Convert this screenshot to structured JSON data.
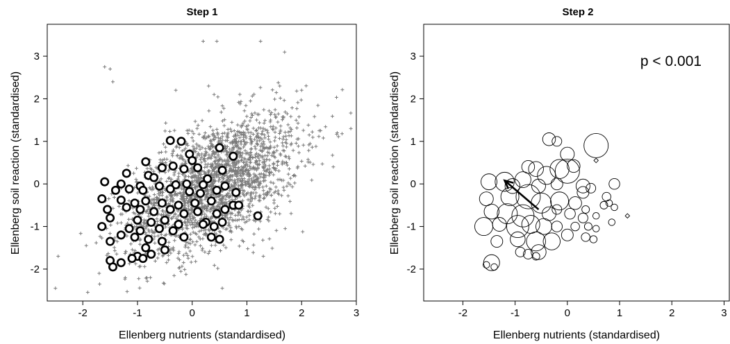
{
  "chart_data": [
    {
      "type": "scatter",
      "title": "Step 1",
      "xlabel": "Ellenberg nutrients (standardised)",
      "ylabel": "Ellenberg soil reaction (standardised)",
      "xlim": [
        -2.65,
        3.0
      ],
      "ylim": [
        -2.75,
        3.75
      ],
      "xticks": [
        -2,
        -1,
        0,
        1,
        2,
        3
      ],
      "yticks": [
        -2,
        -1,
        0,
        1,
        2,
        3
      ],
      "grid": false,
      "series": [
        {
          "marker": "plus",
          "color": "#808080",
          "count": 2200,
          "note_distribution": "bivariate cloud, centre approx (0.4, 0.0), r approx 0.5",
          "points": [
            [
              0.2,
              3.35
            ],
            [
              0.45,
              3.35
            ],
            [
              1.25,
              3.35
            ],
            [
              -1.6,
              2.75
            ],
            [
              -1.5,
              2.7
            ],
            [
              -1.45,
              2.4
            ],
            [
              2.0,
              2.2
            ],
            [
              1.6,
              2.3
            ],
            [
              -0.3,
              2.2
            ],
            [
              0.3,
              2.3
            ],
            [
              2.9,
              1.3
            ],
            [
              2.65,
              1.2
            ],
            [
              -2.5,
              -2.45
            ],
            [
              -2.45,
              -1.7
            ],
            [
              0.55,
              -2.45
            ],
            [
              -1.7,
              -2.1
            ],
            [
              1.7,
              -1.05
            ],
            [
              1.3,
              -1.7
            ],
            [
              0.4,
              2.1
            ]
          ]
        },
        {
          "marker": "open-circle",
          "color": "#000000",
          "points": [
            [
              -0.4,
              1.02
            ],
            [
              -0.2,
              1.0
            ],
            [
              -0.05,
              0.7
            ],
            [
              0.0,
              0.55
            ],
            [
              0.5,
              0.85
            ],
            [
              0.75,
              0.65
            ],
            [
              -0.85,
              0.52
            ],
            [
              -0.55,
              0.38
            ],
            [
              -0.35,
              0.42
            ],
            [
              -0.15,
              0.35
            ],
            [
              0.1,
              0.38
            ],
            [
              -1.2,
              0.25
            ],
            [
              -0.8,
              0.2
            ],
            [
              -0.7,
              0.15
            ],
            [
              0.28,
              0.12
            ],
            [
              0.55,
              0.32
            ],
            [
              -1.6,
              0.05
            ],
            [
              -1.3,
              0.0
            ],
            [
              -0.95,
              -0.05
            ],
            [
              -0.6,
              -0.05
            ],
            [
              -0.3,
              -0.02
            ],
            [
              -0.1,
              0.0
            ],
            [
              0.2,
              -0.02
            ],
            [
              0.6,
              -0.05
            ],
            [
              -1.4,
              -0.15
            ],
            [
              -1.15,
              -0.12
            ],
            [
              -0.9,
              -0.15
            ],
            [
              -0.4,
              -0.12
            ],
            [
              -0.05,
              -0.18
            ],
            [
              0.15,
              -0.22
            ],
            [
              0.45,
              -0.15
            ],
            [
              0.8,
              -0.2
            ],
            [
              -1.65,
              -0.35
            ],
            [
              -1.3,
              -0.38
            ],
            [
              -1.05,
              -0.45
            ],
            [
              -0.85,
              -0.4
            ],
            [
              -0.55,
              -0.45
            ],
            [
              -0.25,
              -0.5
            ],
            [
              0.05,
              -0.45
            ],
            [
              0.35,
              -0.4
            ],
            [
              0.75,
              -0.5
            ],
            [
              0.85,
              -0.5
            ],
            [
              -1.55,
              -0.6
            ],
            [
              -1.2,
              -0.55
            ],
            [
              -0.95,
              -0.6
            ],
            [
              -0.7,
              -0.65
            ],
            [
              -0.4,
              -0.6
            ],
            [
              -0.15,
              -0.7
            ],
            [
              0.1,
              -0.65
            ],
            [
              0.45,
              -0.7
            ],
            [
              0.6,
              -0.6
            ],
            [
              1.2,
              -0.75
            ],
            [
              -1.5,
              -0.8
            ],
            [
              -1.0,
              -0.85
            ],
            [
              -0.75,
              -0.9
            ],
            [
              -0.5,
              -0.85
            ],
            [
              -0.25,
              -0.95
            ],
            [
              0.25,
              -0.9
            ],
            [
              0.55,
              -0.9
            ],
            [
              -1.65,
              -1.0
            ],
            [
              -1.15,
              -1.05
            ],
            [
              -0.95,
              -1.1
            ],
            [
              -0.6,
              -1.05
            ],
            [
              -0.35,
              -1.1
            ],
            [
              0.2,
              -0.95
            ],
            [
              0.4,
              -1.0
            ],
            [
              -1.3,
              -1.2
            ],
            [
              -1.05,
              -1.25
            ],
            [
              -0.8,
              -1.3
            ],
            [
              -0.55,
              -1.35
            ],
            [
              -0.15,
              -1.25
            ],
            [
              0.35,
              -1.25
            ],
            [
              0.5,
              -1.3
            ],
            [
              -1.5,
              -1.35
            ],
            [
              -0.85,
              -1.5
            ],
            [
              -0.5,
              -1.55
            ],
            [
              -0.75,
              -1.65
            ],
            [
              -1.0,
              -1.7
            ],
            [
              -0.9,
              -1.75
            ],
            [
              -1.3,
              -1.85
            ],
            [
              -1.5,
              -1.8
            ],
            [
              -1.45,
              -1.95
            ],
            [
              -1.1,
              -1.75
            ]
          ]
        }
      ]
    },
    {
      "type": "scatter",
      "title": "Step 2",
      "xlabel": "Ellenberg nutrients (standardised)",
      "ylabel": "Ellenberg soil reaction (standardised)",
      "xlim": [
        -2.75,
        3.1
      ],
      "ylim": [
        -2.75,
        3.75
      ],
      "xticks": [
        -2,
        -1,
        0,
        1,
        2,
        3
      ],
      "yticks": [
        -2,
        -1,
        0,
        1,
        2,
        3
      ],
      "grid": false,
      "annotation": "p < 0.001",
      "arrow": {
        "from": [
          -0.55,
          -0.6
        ],
        "to": [
          -1.2,
          0.08
        ]
      },
      "series": [
        {
          "marker": "bubble",
          "color": "#000000",
          "note": "point size = relative weight",
          "points": [
            {
              "x": -0.35,
              "y": 1.05,
              "size": 0.45
            },
            {
              "x": -0.2,
              "y": 1.0,
              "size": 0.3
            },
            {
              "x": 0.55,
              "y": 0.9,
              "size": 1.0
            },
            {
              "x": 0.0,
              "y": 0.7,
              "size": 0.5
            },
            {
              "x": 0.55,
              "y": 0.55,
              "size": 0.1
            },
            {
              "x": 0.12,
              "y": 0.42,
              "size": 0.45
            },
            {
              "x": -0.15,
              "y": 0.35,
              "size": 0.75
            },
            {
              "x": -0.75,
              "y": 0.4,
              "size": 0.45
            },
            {
              "x": -0.6,
              "y": 0.35,
              "size": 0.55
            },
            {
              "x": -0.85,
              "y": 0.1,
              "size": 0.6
            },
            {
              "x": -0.4,
              "y": 0.2,
              "size": 0.7
            },
            {
              "x": 0.0,
              "y": 0.3,
              "size": 1.0
            },
            {
              "x": -1.2,
              "y": 0.05,
              "size": 0.75
            },
            {
              "x": -1.5,
              "y": 0.05,
              "size": 0.6
            },
            {
              "x": -1.05,
              "y": -0.05,
              "size": 0.55
            },
            {
              "x": -0.55,
              "y": -0.05,
              "size": 0.5
            },
            {
              "x": -0.2,
              "y": 0.0,
              "size": 0.4
            },
            {
              "x": 0.3,
              "y": -0.05,
              "size": 0.5
            },
            {
              "x": 0.45,
              "y": -0.1,
              "size": 0.3
            },
            {
              "x": 0.9,
              "y": 0.0,
              "size": 0.35
            },
            {
              "x": -1.55,
              "y": -0.35,
              "size": 0.5
            },
            {
              "x": -1.1,
              "y": -0.3,
              "size": 0.7
            },
            {
              "x": -0.75,
              "y": -0.3,
              "size": 1.0
            },
            {
              "x": -0.5,
              "y": -0.45,
              "size": 0.8
            },
            {
              "x": -0.15,
              "y": -0.4,
              "size": 0.7
            },
            {
              "x": 0.15,
              "y": -0.45,
              "size": 0.45
            },
            {
              "x": 0.3,
              "y": -0.2,
              "size": 0.4
            },
            {
              "x": 0.75,
              "y": -0.3,
              "size": 0.25
            },
            {
              "x": 1.15,
              "y": -0.75,
              "size": 0.12
            },
            {
              "x": 0.7,
              "y": -0.5,
              "size": 0.2
            },
            {
              "x": 0.8,
              "y": -0.45,
              "size": 0.15
            },
            {
              "x": 0.9,
              "y": -0.55,
              "size": 0.15
            },
            {
              "x": -1.45,
              "y": -0.65,
              "size": 0.55
            },
            {
              "x": -1.15,
              "y": -0.7,
              "size": 0.8
            },
            {
              "x": -0.85,
              "y": -0.75,
              "size": 0.9
            },
            {
              "x": -0.35,
              "y": -0.7,
              "size": 0.5
            },
            {
              "x": -0.2,
              "y": -0.6,
              "size": 0.3
            },
            {
              "x": 0.05,
              "y": -0.7,
              "size": 0.35
            },
            {
              "x": 0.3,
              "y": -0.8,
              "size": 0.3
            },
            {
              "x": 0.55,
              "y": -0.75,
              "size": 0.15
            },
            {
              "x": 0.35,
              "y": -0.6,
              "size": 0.2
            },
            {
              "x": -1.6,
              "y": -1.0,
              "size": 0.7
            },
            {
              "x": -1.3,
              "y": -0.95,
              "size": 0.5
            },
            {
              "x": -0.95,
              "y": -1.0,
              "size": 0.9
            },
            {
              "x": -0.7,
              "y": -0.95,
              "size": 0.7
            },
            {
              "x": -0.45,
              "y": -1.0,
              "size": 0.6
            },
            {
              "x": -0.2,
              "y": -1.0,
              "size": 0.35
            },
            {
              "x": 0.15,
              "y": -1.0,
              "size": 0.25
            },
            {
              "x": 0.4,
              "y": -1.0,
              "size": 0.2
            },
            {
              "x": 0.55,
              "y": -1.05,
              "size": 0.15
            },
            {
              "x": 0.85,
              "y": -0.9,
              "size": 0.15
            },
            {
              "x": -1.35,
              "y": -1.35,
              "size": 0.4
            },
            {
              "x": -0.95,
              "y": -1.3,
              "size": 0.55
            },
            {
              "x": -0.6,
              "y": -1.35,
              "size": 0.75
            },
            {
              "x": -0.3,
              "y": -1.35,
              "size": 0.65
            },
            {
              "x": 0.0,
              "y": -1.2,
              "size": 0.4
            },
            {
              "x": 0.35,
              "y": -1.25,
              "size": 0.25
            },
            {
              "x": 0.5,
              "y": -1.3,
              "size": 0.18
            },
            {
              "x": -0.55,
              "y": -1.6,
              "size": 0.55
            },
            {
              "x": -0.75,
              "y": -1.65,
              "size": 0.3
            },
            {
              "x": -0.6,
              "y": -1.7,
              "size": 0.2
            },
            {
              "x": -1.45,
              "y": -1.85,
              "size": 0.6
            },
            {
              "x": -1.55,
              "y": -1.9,
              "size": 0.15
            },
            {
              "x": -1.4,
              "y": -1.95,
              "size": 0.15
            },
            {
              "x": -0.9,
              "y": -1.6,
              "size": 0.3
            }
          ]
        }
      ]
    }
  ]
}
